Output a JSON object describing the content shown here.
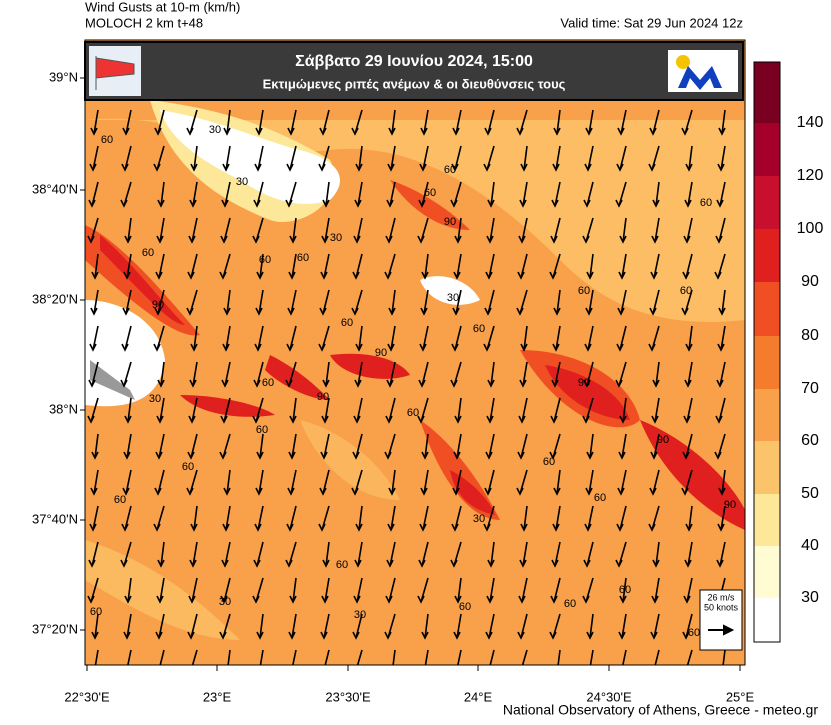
{
  "header": {
    "title": "Wind Gusts at 10-m (km/h)",
    "model": "MOLOCH 2 km t+48",
    "valid_time": "Valid time: Sat 29 Jun 2024 12z"
  },
  "banner": {
    "title": "Σάββατο  29 Ιουνίου 2024, 15:00",
    "subtitle": "Εκτιμώμενες ριπές ανέμων & οι διευθύνσεις τους"
  },
  "latitude_labels": [
    "39°N",
    "38°40'N",
    "38°20'N",
    "38°N",
    "37°40'N",
    "37°20'N"
  ],
  "longitude_labels": [
    "22°30'E",
    "23°E",
    "23°30'E",
    "24°E",
    "24°30'E",
    "25°E"
  ],
  "colorbar_labels": [
    140,
    120,
    100,
    90,
    80,
    70,
    60,
    50,
    40,
    30
  ],
  "wind_legend": {
    "speed": "26 m/s",
    "knots": "50 knots"
  },
  "contour_labels": [
    60,
    30,
    30,
    60,
    30,
    60,
    90,
    60,
    60,
    90,
    60,
    30,
    60,
    60,
    90,
    90,
    90,
    60,
    60,
    90,
    60,
    30,
    60,
    60,
    60,
    30,
    60,
    60,
    90,
    60,
    30,
    60,
    60,
    30,
    60,
    60,
    60,
    60,
    60
  ],
  "footer": "National Observatory of Athens, Greece - meteo.gr"
}
